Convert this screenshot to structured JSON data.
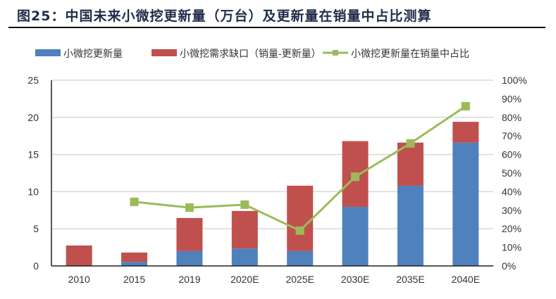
{
  "title": "图25：中国未来小微挖更新量（万台）及更新量在销量中占比测算",
  "chart_data": {
    "type": "bar",
    "stacked": true,
    "categories": [
      "2010",
      "2015",
      "2019",
      "2020E",
      "2025E",
      "2030E",
      "2035E",
      "2040E"
    ],
    "series": [
      {
        "name": "小微挖更新量",
        "type": "bar",
        "axis": "left",
        "color": "#4f81bd",
        "values": [
          0,
          0.55,
          2.0,
          2.35,
          2.0,
          7.95,
          10.8,
          16.6
        ]
      },
      {
        "name": "小微挖需求缺口（销量-更新量）",
        "type": "bar",
        "axis": "left",
        "color": "#c0504d",
        "values": [
          2.75,
          1.25,
          4.45,
          5.05,
          8.8,
          8.85,
          5.8,
          2.8
        ]
      },
      {
        "name": "小微挖更新量在销量中占比",
        "type": "line",
        "axis": "right",
        "color": "#9bbb59",
        "values": [
          null,
          34.5,
          31.4,
          33,
          19,
          48,
          66,
          86
        ]
      }
    ],
    "ylim": [
      0,
      25
    ],
    "yticks": [
      "0",
      "5",
      "10",
      "15",
      "20",
      "25"
    ],
    "y2lim": [
      0,
      100
    ],
    "y2ticks": [
      "0%",
      "10%",
      "20%",
      "30%",
      "40%",
      "50%",
      "60%",
      "70%",
      "80%",
      "90%",
      "100%"
    ],
    "grid": true,
    "legend": "top"
  }
}
